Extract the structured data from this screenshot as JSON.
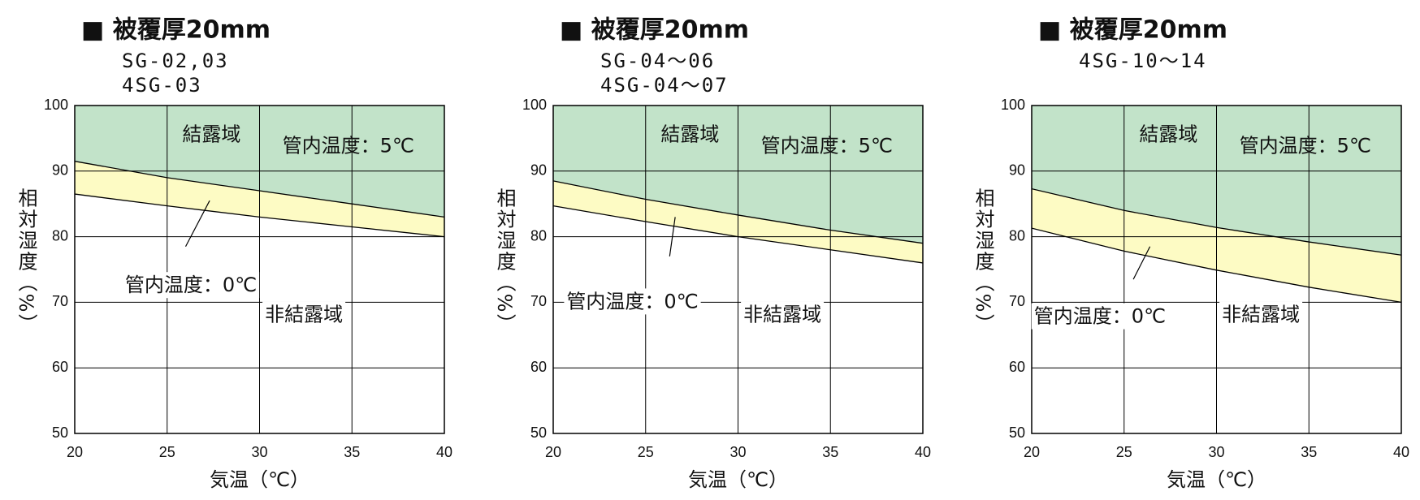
{
  "chart_data": [
    {
      "type": "line",
      "title": "■ 被覆厚20mm",
      "subtitle": [
        "SG-02,03",
        "4SG-03"
      ],
      "x_label": "気温（℃）",
      "y_label": "相対湿度（%）",
      "region_labels": [
        "結露域",
        "非結露域"
      ],
      "x": [
        20,
        25,
        30,
        35,
        40
      ],
      "series": [
        {
          "name": "管内温度：5℃",
          "color": "#000000",
          "fill": "#c2e3c9",
          "values": [
            91.5,
            89,
            87,
            85,
            83
          ]
        },
        {
          "name": "管内温度：0℃",
          "color": "#000000",
          "fill": "#fdfbc4",
          "values": [
            86.5,
            84.7,
            83,
            81.5,
            80
          ]
        }
      ],
      "xlim": [
        20,
        40
      ],
      "xticks": [
        20,
        25,
        30,
        35,
        40
      ],
      "ylim": [
        50,
        100
      ],
      "yticks": [
        50,
        60,
        70,
        80,
        90,
        100
      ],
      "grid": true
    },
    {
      "type": "line",
      "title": "■ 被覆厚20mm",
      "subtitle": [
        "SG-04～06",
        "4SG-04～07"
      ],
      "x_label": "気温（℃）",
      "y_label": "相対湿度（%）",
      "region_labels": [
        "結露域",
        "非結露域"
      ],
      "x": [
        20,
        25,
        30,
        35,
        40
      ],
      "series": [
        {
          "name": "管内温度：5℃",
          "color": "#000000",
          "fill": "#c2e3c9",
          "values": [
            88.5,
            85.7,
            83.3,
            81,
            79
          ]
        },
        {
          "name": "管内温度：0℃",
          "color": "#000000",
          "fill": "#fdfbc4",
          "values": [
            84.7,
            82.3,
            80,
            78,
            76
          ]
        }
      ],
      "xlim": [
        20,
        40
      ],
      "xticks": [
        20,
        25,
        30,
        35,
        40
      ],
      "ylim": [
        50,
        100
      ],
      "yticks": [
        50,
        60,
        70,
        80,
        90,
        100
      ],
      "grid": true
    },
    {
      "type": "line",
      "title": "■ 被覆厚20mm",
      "subtitle": [
        "4SG-10～14"
      ],
      "x_label": "気温（℃）",
      "y_label": "相対湿度（%）",
      "region_labels": [
        "結露域",
        "非結露域"
      ],
      "x": [
        20,
        25,
        30,
        35,
        40
      ],
      "series": [
        {
          "name": "管内温度：5℃",
          "color": "#000000",
          "fill": "#c2e3c9",
          "values": [
            87.3,
            84,
            81.4,
            79.2,
            77.2
          ]
        },
        {
          "name": "管内温度：0℃",
          "color": "#000000",
          "fill": "#fdfbc4",
          "values": [
            81.3,
            77.8,
            74.9,
            72.3,
            70
          ]
        }
      ],
      "xlim": [
        20,
        40
      ],
      "xticks": [
        20,
        25,
        30,
        35,
        40
      ],
      "ylim": [
        50,
        100
      ],
      "yticks": [
        50,
        60,
        70,
        80,
        90,
        100
      ],
      "grid": true
    }
  ]
}
